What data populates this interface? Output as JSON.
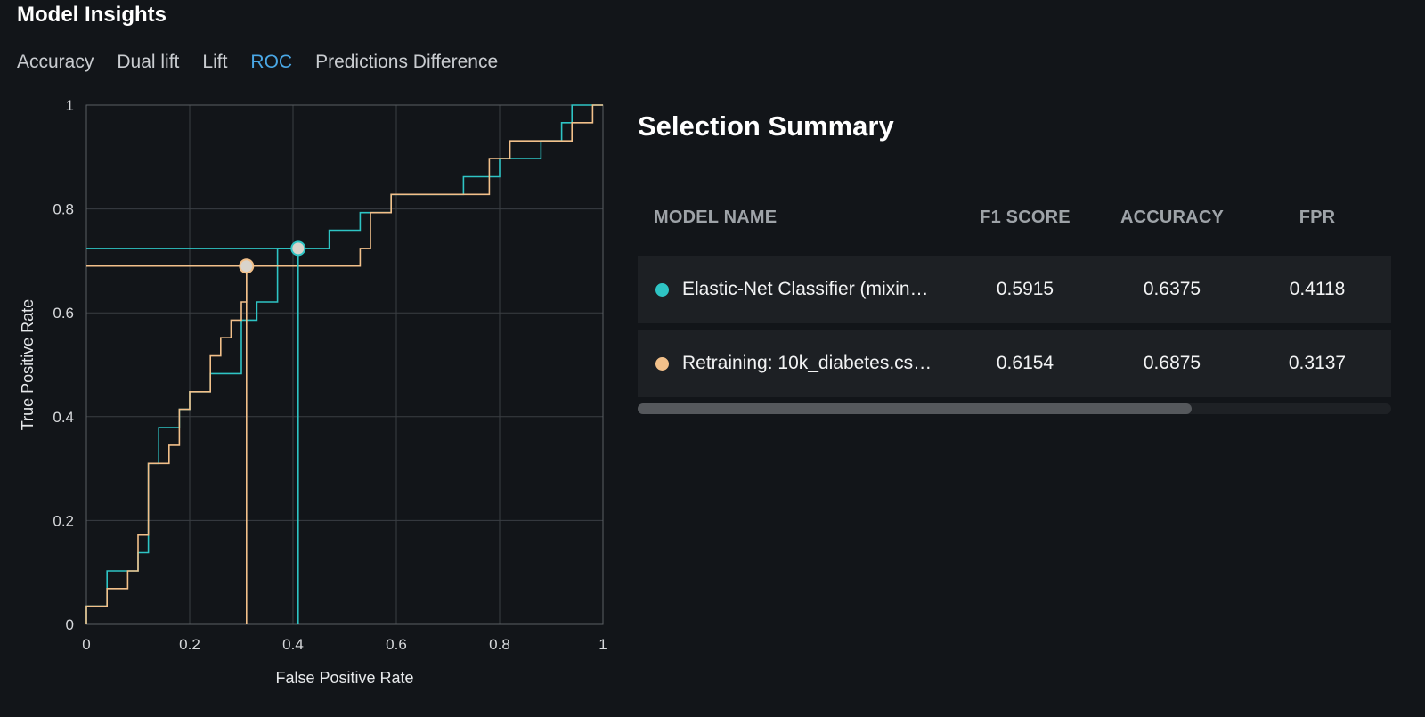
{
  "page_title": "Model Insights",
  "tabs": [
    {
      "label": "Accuracy",
      "active": false
    },
    {
      "label": "Dual lift",
      "active": false
    },
    {
      "label": "Lift",
      "active": false
    },
    {
      "label": "ROC",
      "active": true
    },
    {
      "label": "Predictions Difference",
      "active": false
    }
  ],
  "colors": {
    "accent": "#4aa8e6",
    "series_teal": "#2ec4c4",
    "series_orange": "#f2c08a",
    "background": "#121519"
  },
  "summary": {
    "title": "Selection Summary",
    "columns": [
      "MODEL NAME",
      "F1 SCORE",
      "ACCURACY",
      "FPR"
    ],
    "rows": [
      {
        "name": "Elastic-Net Classifier (mixin…",
        "color": "#2ec4c4",
        "f1": "0.5915",
        "accuracy": "0.6375",
        "fpr": "0.4118"
      },
      {
        "name": "Retraining: 10k_diabetes.cs…",
        "color": "#f2c08a",
        "f1": "0.6154",
        "accuracy": "0.6875",
        "fpr": "0.3137"
      }
    ],
    "scroll_fraction": 0.735
  },
  "chart_data": {
    "type": "line",
    "title": "",
    "xlabel": "False Positive Rate",
    "ylabel": "True Positive Rate",
    "xlim": [
      0,
      1
    ],
    "ylim": [
      0,
      1
    ],
    "x_ticks": [
      "0",
      "0.2",
      "0.4",
      "0.6",
      "0.8",
      "1"
    ],
    "y_ticks": [
      "0",
      "0.2",
      "0.4",
      "0.6",
      "0.8",
      "1"
    ],
    "grid": true,
    "series": [
      {
        "color": "#2ec4c4",
        "step": true,
        "points": [
          [
            0,
            0
          ],
          [
            0,
            0.035
          ],
          [
            0.04,
            0.035
          ],
          [
            0.04,
            0.103
          ],
          [
            0.1,
            0.103
          ],
          [
            0.1,
            0.138
          ],
          [
            0.12,
            0.138
          ],
          [
            0.12,
            0.31
          ],
          [
            0.14,
            0.31
          ],
          [
            0.14,
            0.379
          ],
          [
            0.18,
            0.379
          ],
          [
            0.18,
            0.414
          ],
          [
            0.2,
            0.414
          ],
          [
            0.2,
            0.448
          ],
          [
            0.24,
            0.448
          ],
          [
            0.24,
            0.483
          ],
          [
            0.3,
            0.483
          ],
          [
            0.3,
            0.586
          ],
          [
            0.33,
            0.586
          ],
          [
            0.33,
            0.621
          ],
          [
            0.37,
            0.621
          ],
          [
            0.37,
            0.724
          ],
          [
            0.47,
            0.724
          ],
          [
            0.47,
            0.759
          ],
          [
            0.53,
            0.759
          ],
          [
            0.53,
            0.793
          ],
          [
            0.59,
            0.793
          ],
          [
            0.59,
            0.828
          ],
          [
            0.73,
            0.828
          ],
          [
            0.73,
            0.862
          ],
          [
            0.8,
            0.862
          ],
          [
            0.8,
            0.897
          ],
          [
            0.88,
            0.897
          ],
          [
            0.88,
            0.931
          ],
          [
            0.92,
            0.931
          ],
          [
            0.92,
            0.966
          ],
          [
            0.94,
            0.966
          ],
          [
            0.94,
            1
          ],
          [
            1,
            1
          ]
        ],
        "threshold_point": [
          0.41,
          0.724
        ]
      },
      {
        "color": "#f2c08a",
        "step": true,
        "points": [
          [
            0,
            0
          ],
          [
            0,
            0.035
          ],
          [
            0.04,
            0.035
          ],
          [
            0.04,
            0.069
          ],
          [
            0.08,
            0.069
          ],
          [
            0.08,
            0.103
          ],
          [
            0.1,
            0.103
          ],
          [
            0.1,
            0.172
          ],
          [
            0.12,
            0.172
          ],
          [
            0.12,
            0.31
          ],
          [
            0.16,
            0.31
          ],
          [
            0.16,
            0.345
          ],
          [
            0.18,
            0.345
          ],
          [
            0.18,
            0.414
          ],
          [
            0.2,
            0.414
          ],
          [
            0.2,
            0.448
          ],
          [
            0.24,
            0.448
          ],
          [
            0.24,
            0.517
          ],
          [
            0.26,
            0.517
          ],
          [
            0.26,
            0.552
          ],
          [
            0.28,
            0.552
          ],
          [
            0.28,
            0.586
          ],
          [
            0.3,
            0.586
          ],
          [
            0.3,
            0.621
          ],
          [
            0.31,
            0.621
          ],
          [
            0.31,
            0.69
          ],
          [
            0.53,
            0.69
          ],
          [
            0.53,
            0.724
          ],
          [
            0.55,
            0.724
          ],
          [
            0.55,
            0.793
          ],
          [
            0.59,
            0.793
          ],
          [
            0.59,
            0.828
          ],
          [
            0.78,
            0.828
          ],
          [
            0.78,
            0.897
          ],
          [
            0.82,
            0.897
          ],
          [
            0.82,
            0.931
          ],
          [
            0.94,
            0.931
          ],
          [
            0.94,
            0.966
          ],
          [
            0.98,
            0.966
          ],
          [
            0.98,
            1
          ],
          [
            1,
            1
          ]
        ],
        "threshold_point": [
          0.31,
          0.69
        ]
      }
    ]
  }
}
